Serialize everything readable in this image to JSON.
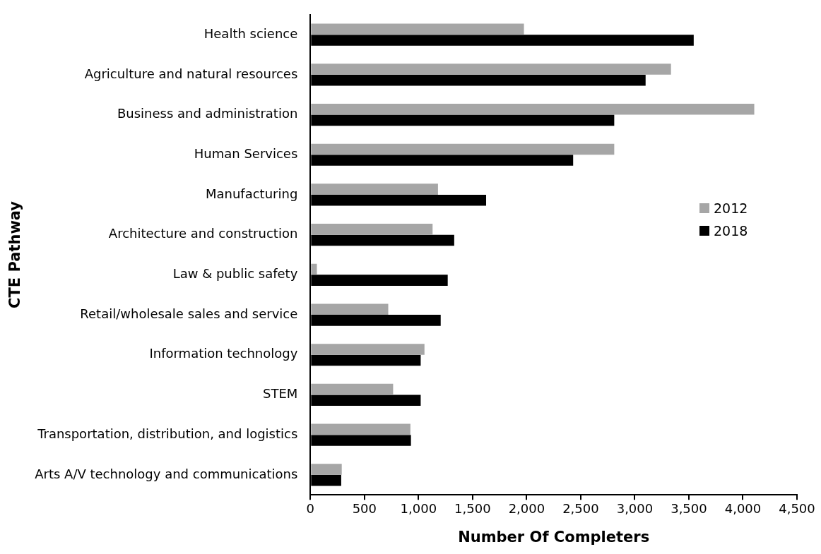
{
  "chart_data": {
    "type": "bar",
    "orientation": "horizontal",
    "xlabel": "Number Of Completers",
    "ylabel": "CTE Pathway",
    "categories": [
      "Health science",
      "Agriculture and natural resources",
      "Business and administration",
      "Human Services",
      "Manufacturing",
      "Architecture and construction",
      "Law & public safety",
      "Retail/wholesale sales and service",
      "Information technology",
      "STEM",
      "Transportation, distribution, and logistics",
      "Arts A/V technology and communications"
    ],
    "series": [
      {
        "name": "2012",
        "color": "#a6a6a6",
        "values": [
          1975,
          3335,
          4105,
          2810,
          1180,
          1130,
          60,
          720,
          1055,
          765,
          925,
          290
        ]
      },
      {
        "name": "2018",
        "color": "#000000",
        "values": [
          3545,
          3100,
          2810,
          2430,
          1625,
          1330,
          1270,
          1205,
          1020,
          1020,
          930,
          285
        ]
      }
    ],
    "xlim": [
      0,
      4500
    ],
    "xticks": [
      0,
      500,
      {
        "value": 1000,
        "label": "1,000"
      },
      {
        "value": 1500,
        "label": "1,500"
      },
      {
        "value": 2000,
        "label": "2,000"
      },
      {
        "value": 2500,
        "label": "2,500"
      },
      {
        "value": 3000,
        "label": "3,000"
      },
      {
        "value": 3500,
        "label": "3,500"
      },
      {
        "value": 4000,
        "label": "4,000"
      },
      {
        "value": 4500,
        "label": "4,500"
      }
    ],
    "grid": false,
    "legend": "right"
  }
}
